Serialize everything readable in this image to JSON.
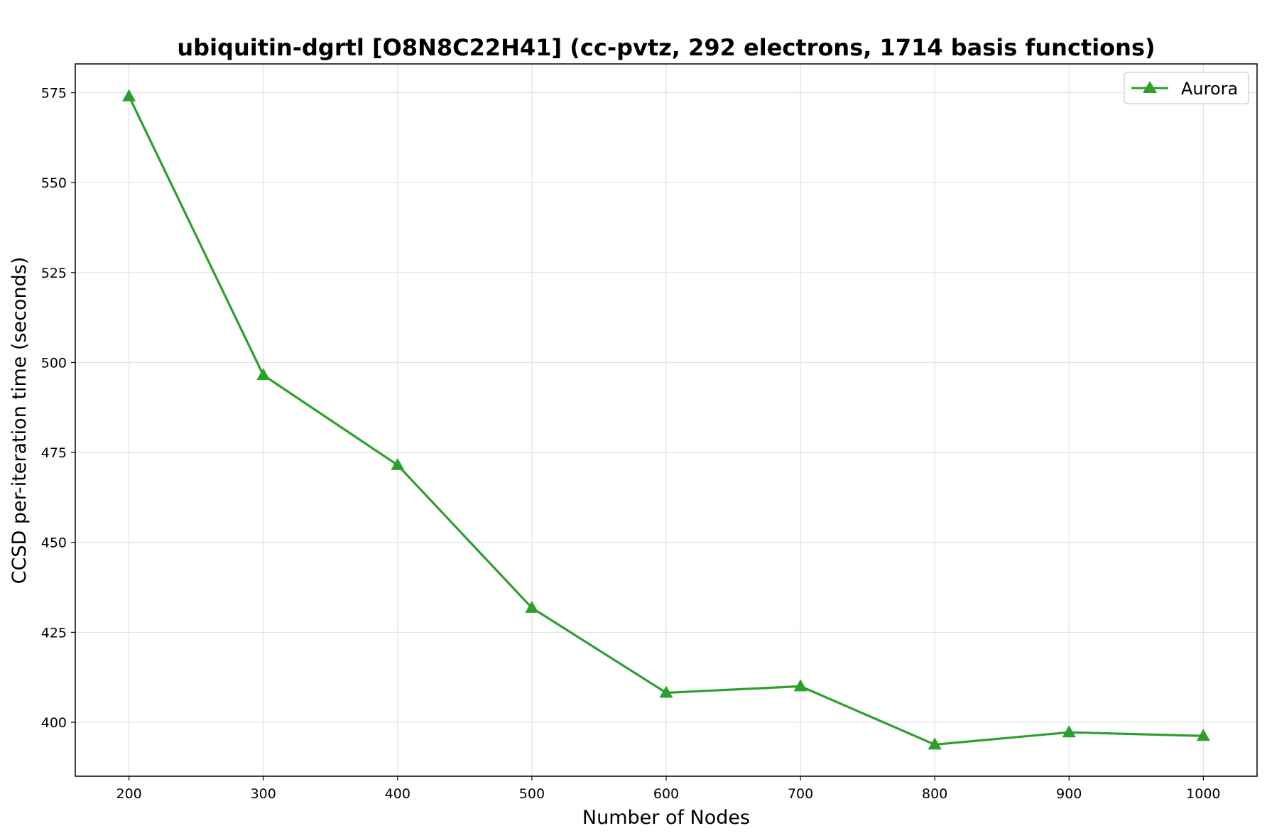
{
  "chart_data": {
    "type": "line",
    "title": "ubiquitin-dgrtl [O8N8C22H41] (cc-pvtz, 292 electrons, 1714 basis functions)",
    "xlabel": "Number of Nodes",
    "ylabel": "CCSD per-iteration time (seconds)",
    "x": [
      200,
      300,
      400,
      500,
      600,
      700,
      800,
      900,
      1000
    ],
    "xticks": [
      200,
      300,
      400,
      500,
      600,
      700,
      800,
      900,
      1000
    ],
    "yticks": [
      400,
      425,
      450,
      475,
      500,
      525,
      550,
      575
    ],
    "xlim": [
      160,
      1040
    ],
    "ylim": [
      385,
      583
    ],
    "grid": true,
    "legend_position": "top-right",
    "series": [
      {
        "name": "Aurora",
        "color": "#2ca02c",
        "marker": "triangle",
        "values": [
          574.0,
          496.5,
          471.5,
          431.8,
          408.2,
          410.0,
          393.8,
          397.2,
          396.2
        ]
      }
    ]
  }
}
